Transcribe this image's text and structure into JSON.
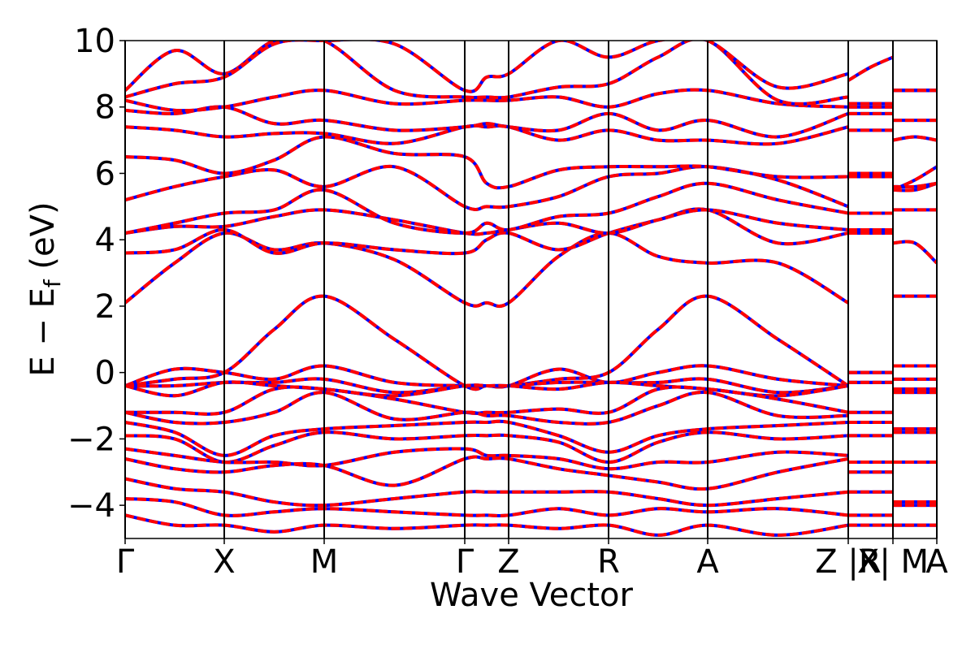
{
  "chart_data": {
    "type": "band-structure",
    "xlabel": "Wave Vector",
    "ylabel": [
      "E − E",
      "f",
      " (eV)"
    ],
    "xlim": [
      0,
      9.99
    ],
    "ylim": [
      -5,
      10
    ],
    "xticks": [
      {
        "value": 0,
        "label": "Γ"
      },
      {
        "value": 1.22,
        "label": "X"
      },
      {
        "value": 2.45,
        "label": "M"
      },
      {
        "value": 4.18,
        "label": "Γ"
      },
      {
        "value": 4.72,
        "label": "Z"
      },
      {
        "value": 5.95,
        "label": "R"
      },
      {
        "value": 7.17,
        "label": "A"
      },
      {
        "value": 8.9,
        "label": "Z |R"
      },
      {
        "value": 9.45,
        "label": "X| M"
      },
      {
        "value": 9.99,
        "label": "A"
      }
    ],
    "yticks": [
      {
        "value": -4,
        "label": "−4"
      },
      {
        "value": -2,
        "label": "−2"
      },
      0,
      2,
      4,
      6,
      8,
      10
    ],
    "base_color": "#0000ff",
    "dash_color": "#ff0000",
    "x": [
      0,
      0.61,
      1.22,
      1.835,
      2.45,
      3.315,
      4.18,
      4.45,
      4.72,
      5.335,
      5.95,
      6.56,
      7.17,
      8.035,
      8.9,
      8.9,
      8.9,
      9.175,
      9.45,
      9.45,
      9.45,
      9.72,
      9.99
    ],
    "series": [
      {
        "values": [
          2.1,
          3.3,
          4.2,
          3.7,
          3.9,
          3.4,
          2.1,
          2.1,
          2.1,
          3.5,
          4.2,
          3.5,
          3.3,
          3.3,
          2.1,
          null,
          4.2,
          4.2,
          4.2,
          null,
          3.9,
          3.9,
          3.3
        ]
      },
      {
        "values": [
          3.6,
          3.7,
          4.3,
          3.6,
          3.9,
          3.7,
          3.6,
          4.0,
          4.2,
          3.7,
          4.2,
          4.6,
          4.9,
          3.9,
          4.2,
          null,
          4.2,
          4.2,
          4.2,
          null,
          4.9,
          4.9,
          4.9
        ]
      },
      {
        "values": [
          4.2,
          4.4,
          4.4,
          4.7,
          4.9,
          4.6,
          4.2,
          4.2,
          4.3,
          4.5,
          4.2,
          4.6,
          4.9,
          4.5,
          4.3,
          null,
          4.3,
          4.3,
          4.3,
          null,
          5.5,
          5.5,
          5.7
        ]
      },
      {
        "values": [
          4.2,
          4.5,
          4.8,
          4.9,
          5.5,
          4.5,
          4.2,
          4.5,
          4.3,
          4.7,
          4.8,
          5.3,
          5.7,
          5.2,
          4.8,
          null,
          4.8,
          4.8,
          4.8,
          null,
          5.6,
          5.6,
          5.7
        ]
      },
      {
        "values": [
          5.2,
          5.6,
          5.9,
          6.1,
          5.6,
          6.2,
          5.0,
          5.0,
          5.0,
          5.3,
          5.9,
          6.0,
          6.2,
          5.8,
          5.0,
          null,
          5.9,
          5.9,
          5.9,
          null,
          5.5,
          5.8,
          6.2
        ]
      },
      {
        "values": [
          6.5,
          6.4,
          6.0,
          6.4,
          7.1,
          6.6,
          6.5,
          5.7,
          5.6,
          6.1,
          6.2,
          6.2,
          6.2,
          5.9,
          5.9,
          null,
          6.0,
          6.0,
          6.0,
          null,
          7.0,
          7.1,
          7.0
        ]
      },
      {
        "values": [
          7.4,
          7.3,
          7.1,
          7.2,
          7.2,
          6.9,
          7.4,
          7.4,
          7.4,
          7.0,
          7.3,
          7.0,
          7.0,
          6.9,
          7.4,
          null,
          7.3,
          7.3,
          7.3,
          null,
          7.6,
          7.6,
          7.6
        ]
      },
      {
        "values": [
          7.9,
          7.8,
          8.0,
          7.5,
          7.6,
          7.3,
          7.4,
          7.5,
          7.4,
          7.3,
          7.8,
          7.3,
          7.6,
          7.1,
          7.8,
          null,
          7.8,
          7.8,
          7.8,
          null,
          8.5,
          8.5,
          8.5
        ]
      },
      {
        "values": [
          8.2,
          7.9,
          8.0,
          8.3,
          8.5,
          8.1,
          8.2,
          8.2,
          8.2,
          8.3,
          8.0,
          8.4,
          8.5,
          8.1,
          8.0,
          null,
          8.0,
          8.0,
          8.0,
          null,
          8.5,
          8.5,
          8.5
        ]
      },
      {
        "values": [
          8.5,
          9.7,
          9.0,
          10.0,
          10.0,
          8.5,
          8.3,
          8.3,
          8.3,
          8.6,
          8.7,
          9.5,
          10.0,
          8.2,
          8.3,
          null,
          8.1,
          8.1,
          8.1,
          null,
          8.5,
          8.5,
          8.5
        ]
      },
      {
        "values": [
          8.3,
          8.7,
          8.9,
          9.9,
          10.0,
          9.9,
          8.5,
          8.9,
          9.0,
          10.0,
          9.5,
          10.0,
          10.0,
          8.6,
          9.0,
          null,
          8.8,
          9.2,
          9.5,
          null,
          8.5,
          8.5,
          8.5
        ]
      },
      {
        "values": [
          -0.4,
          0.1,
          0.0,
          -0.2,
          0.2,
          -0.3,
          -0.4,
          -0.4,
          -0.4,
          0.1,
          -0.3,
          0.0,
          0.2,
          -0.2,
          -0.4,
          null,
          0.0,
          0.0,
          0.0,
          null,
          0.2,
          0.2,
          0.2
        ]
      },
      {
        "values": [
          -0.4,
          -0.2,
          0.0,
          1.3,
          2.3,
          1.0,
          -0.4,
          -0.4,
          -0.4,
          -0.2,
          0.0,
          1.3,
          2.3,
          1.0,
          -0.4,
          null,
          0.0,
          0.0,
          0.0,
          null,
          2.3,
          2.3,
          2.3
        ]
      },
      {
        "values": [
          -0.4,
          -0.4,
          -0.3,
          -0.3,
          -0.2,
          -0.6,
          -0.4,
          -0.4,
          -0.4,
          -0.3,
          -0.3,
          -0.3,
          -0.2,
          -0.6,
          -0.4,
          null,
          -0.3,
          -0.3,
          -0.3,
          null,
          -0.2,
          -0.2,
          -0.2
        ]
      },
      {
        "values": [
          -0.4,
          -0.7,
          -0.3,
          -0.4,
          -0.5,
          -0.7,
          -0.4,
          -0.4,
          -0.4,
          -0.5,
          -0.3,
          -0.4,
          -0.5,
          -0.7,
          -0.4,
          null,
          -0.3,
          -0.3,
          -0.3,
          null,
          -0.5,
          -0.5,
          -0.5
        ]
      },
      {
        "values": [
          -1.2,
          -1.2,
          -1.2,
          -0.5,
          -0.5,
          -0.8,
          -1.2,
          -1.2,
          -1.2,
          -1.1,
          -1.2,
          -0.5,
          -0.5,
          -0.8,
          -1.2,
          null,
          -1.2,
          -1.2,
          -1.2,
          null,
          -0.5,
          -0.5,
          -0.5
        ]
      },
      {
        "values": [
          -1.2,
          -1.5,
          -1.5,
          -1.2,
          -0.6,
          -1.4,
          -1.2,
          -1.3,
          -1.3,
          -1.5,
          -1.5,
          -1.0,
          -0.6,
          -1.3,
          -1.3,
          null,
          -1.5,
          -1.5,
          -1.5,
          null,
          -0.6,
          -0.6,
          -0.6
        ]
      },
      {
        "values": [
          -1.5,
          -1.8,
          -2.5,
          -1.9,
          -1.7,
          -1.6,
          -1.5,
          -1.5,
          -1.5,
          -1.9,
          -2.4,
          -1.9,
          -1.7,
          -1.6,
          -1.5,
          null,
          -1.5,
          -1.5,
          -1.5,
          null,
          -1.7,
          -1.7,
          -1.7
        ]
      },
      {
        "values": [
          -1.9,
          -2.0,
          -2.7,
          -2.2,
          -1.8,
          -2.0,
          -1.9,
          -1.9,
          -1.9,
          -2.1,
          -2.7,
          -2.1,
          -1.8,
          -2.0,
          -1.9,
          null,
          -1.9,
          -1.9,
          -1.9,
          null,
          -1.8,
          -1.8,
          -1.8
        ]
      },
      {
        "values": [
          -2.3,
          -2.5,
          -2.7,
          -2.7,
          -2.8,
          -2.4,
          -2.3,
          -2.5,
          -2.5,
          -2.6,
          -2.9,
          -2.7,
          -2.7,
          -2.4,
          -2.5,
          null,
          -2.7,
          -2.7,
          -2.7,
          null,
          -2.7,
          -2.7,
          -2.7
        ]
      },
      {
        "values": [
          -2.6,
          -2.9,
          -3.0,
          -2.8,
          -2.8,
          -3.4,
          -2.6,
          -2.6,
          -2.6,
          -2.9,
          -3.1,
          -3.3,
          -3.5,
          -3.0,
          -2.6,
          null,
          -3.0,
          -3.0,
          -3.0,
          null,
          -3.9,
          -3.9,
          -3.9
        ]
      },
      {
        "values": [
          -3.2,
          -3.5,
          -3.6,
          -3.9,
          -4.0,
          -3.8,
          -3.6,
          -3.6,
          -3.6,
          -3.6,
          -3.6,
          -3.8,
          -4.0,
          -3.8,
          -3.6,
          null,
          -3.6,
          -3.6,
          -3.6,
          null,
          -4.0,
          -4.0,
          -4.0
        ]
      },
      {
        "values": [
          -3.8,
          -3.9,
          -4.3,
          -4.2,
          -4.1,
          -4.2,
          -4.3,
          -4.3,
          -4.3,
          -4.1,
          -4.3,
          -4.1,
          -4.2,
          -4.1,
          -4.3,
          null,
          -4.3,
          -4.3,
          -4.3,
          null,
          -4.6,
          -4.6,
          -4.6
        ]
      },
      {
        "values": [
          -4.3,
          -4.6,
          -4.6,
          -4.8,
          -4.6,
          -4.7,
          -4.6,
          -4.6,
          -4.6,
          -4.7,
          -4.6,
          -4.9,
          -4.6,
          -4.9,
          -4.6,
          null,
          -4.6,
          -4.6,
          -4.6,
          null,
          -4.6,
          -4.6,
          -4.6
        ]
      }
    ]
  }
}
